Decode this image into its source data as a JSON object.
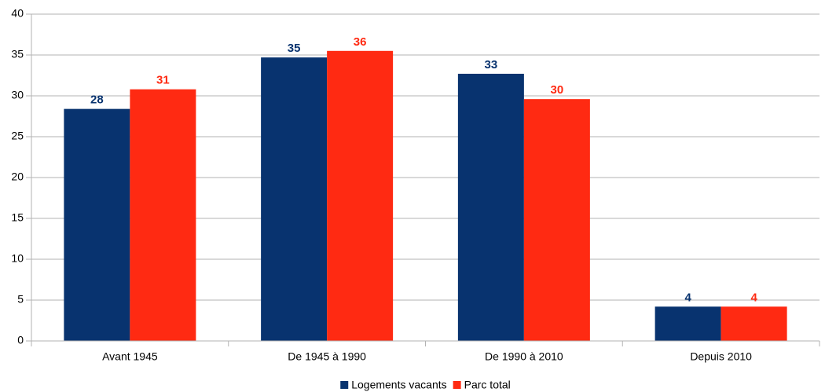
{
  "chart_data": {
    "type": "bar",
    "categories": [
      "Avant 1945",
      "De 1945 à 1990",
      "De 1990 à 2010",
      "Depuis 2010"
    ],
    "series": [
      {
        "name": "Logements vacants",
        "color": "#08336f",
        "values": [
          28.4,
          34.7,
          32.7,
          4.2
        ],
        "value_labels": [
          "28",
          "35",
          "33",
          "4"
        ]
      },
      {
        "name": "Parc total",
        "color": "#ff2a12",
        "values": [
          30.8,
          35.5,
          29.6,
          4.2
        ],
        "value_labels": [
          "31",
          "36",
          "30",
          "4"
        ]
      }
    ],
    "ylim": [
      0,
      40
    ],
    "yticks": [
      0,
      5,
      10,
      15,
      20,
      25,
      30,
      35,
      40
    ],
    "grid": true,
    "legend": "bottom"
  }
}
